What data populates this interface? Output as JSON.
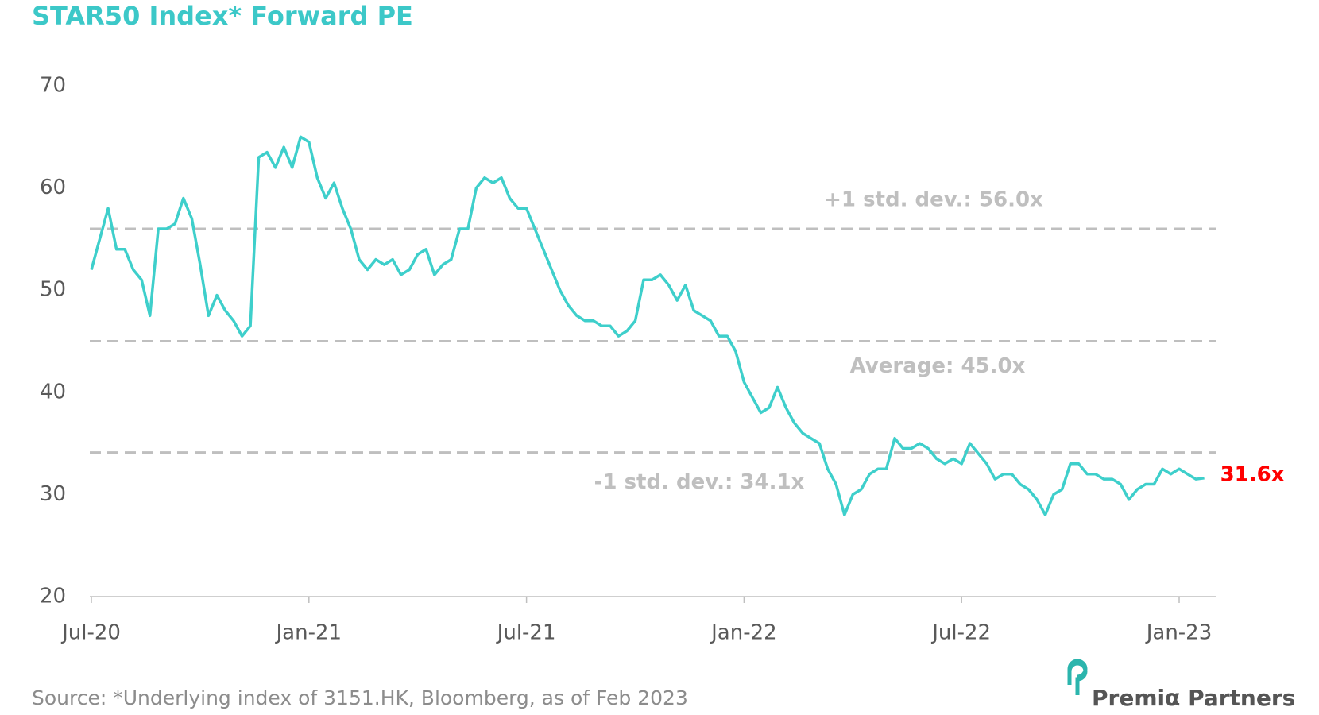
{
  "chart_data": {
    "type": "line",
    "title": "STAR50 Index* Forward PE",
    "source": "Source: *Underlying index of 3151.HK, Bloomberg, as of Feb 2023",
    "brand": "Premiα Partners",
    "categories": [
      "Jul-20",
      null,
      null,
      null,
      null,
      null,
      null,
      null,
      null,
      null,
      null,
      null,
      null,
      null,
      null,
      null,
      null,
      null,
      null,
      null,
      null,
      null,
      null,
      null,
      null,
      null,
      "Jan-21",
      null,
      null,
      null,
      null,
      null,
      null,
      null,
      null,
      null,
      null,
      null,
      null,
      null,
      null,
      null,
      null,
      null,
      null,
      null,
      null,
      null,
      null,
      null,
      null,
      null,
      "Jul-21",
      null,
      null,
      null,
      null,
      null,
      null,
      null,
      null,
      null,
      null,
      null,
      null,
      null,
      null,
      null,
      null,
      null,
      null,
      null,
      null,
      null,
      null,
      null,
      null,
      null,
      "Jan-22",
      null,
      null,
      null,
      null,
      null,
      null,
      null,
      null,
      null,
      null,
      null,
      null,
      null,
      null,
      null,
      null,
      null,
      null,
      null,
      null,
      null,
      null,
      null,
      null,
      null,
      "Jul-22",
      null,
      null,
      null,
      null,
      null,
      null,
      null,
      null,
      null,
      null,
      null,
      null,
      null,
      null,
      null,
      null,
      null,
      null,
      null,
      null,
      null,
      null,
      null,
      null,
      null,
      "Jan-23",
      null,
      null,
      null
    ],
    "series": [
      {
        "name": "STAR50 Index Forward PE",
        "color": "#3ecfcb",
        "values": [
          52,
          55,
          58,
          54,
          54,
          52,
          51,
          47.5,
          56,
          56,
          56.5,
          59,
          57,
          52.5,
          47.5,
          49.5,
          48,
          47,
          45.5,
          46.5,
          63,
          63.5,
          62,
          64,
          62,
          65,
          64.5,
          61,
          59,
          60.5,
          58,
          56,
          53,
          52,
          53,
          52.5,
          53,
          51.5,
          52,
          53.5,
          54,
          51.5,
          52.5,
          53,
          56,
          56,
          60,
          61,
          60.5,
          61,
          59,
          58,
          58,
          56,
          54,
          52,
          50,
          48.5,
          47.5,
          47,
          47,
          46.5,
          46.5,
          45.5,
          46,
          47,
          51,
          51,
          51.5,
          50.5,
          49,
          50.5,
          48,
          47.5,
          47,
          45.5,
          45.5,
          44,
          41,
          39.5,
          38,
          38.5,
          40.5,
          38.5,
          37,
          36,
          35.5,
          35,
          32.5,
          31,
          28,
          30,
          30.5,
          32,
          32.5,
          32.5,
          35.5,
          34.5,
          34.5,
          35,
          34.5,
          33.5,
          33,
          33.5,
          33,
          35,
          34,
          33,
          31.5,
          32,
          32,
          31,
          30.5,
          29.5,
          28,
          30,
          30.5,
          33,
          33,
          32,
          32,
          31.5,
          31.5,
          31,
          29.5,
          30.5,
          31,
          31,
          32.5,
          32,
          32.5,
          32,
          31.5,
          31.6
        ],
        "value_labels": [
          null,
          null,
          null,
          null,
          null,
          null,
          null,
          null,
          null,
          null,
          null,
          null,
          null,
          null,
          null,
          null,
          null,
          null,
          null,
          null,
          null,
          null,
          null,
          null,
          null,
          null,
          null,
          null,
          null,
          null,
          null,
          null,
          null,
          null,
          null,
          null,
          null,
          null,
          null,
          null,
          null,
          null,
          null,
          null,
          null,
          null,
          null,
          null,
          null,
          null,
          null,
          null,
          null,
          null,
          null,
          null,
          null,
          null,
          null,
          null,
          null,
          null,
          null,
          null,
          null,
          null,
          null,
          null,
          null,
          null,
          null,
          null,
          null,
          null,
          null,
          null,
          null,
          null,
          null,
          null,
          null,
          null,
          null,
          null,
          null,
          null,
          null,
          null,
          null,
          null,
          null,
          null,
          null,
          null,
          null,
          null,
          null,
          null,
          null,
          null,
          null,
          null,
          null,
          null,
          null,
          null,
          null,
          null,
          null,
          null,
          null,
          null,
          null,
          null,
          null,
          null,
          null,
          null,
          null,
          null,
          null,
          null,
          null,
          null,
          null,
          null,
          null,
          null,
          null,
          null,
          null,
          null,
          null,
          "31.6x"
        ],
        "value_label_color": "#ff0000"
      }
    ],
    "reference_lines": [
      {
        "value": 56.0,
        "label": "+1 std. dev.: 56.0x"
      },
      {
        "value": 45.0,
        "label": "Average: 45.0x"
      },
      {
        "value": 34.1,
        "label": "-1 std. dev.: 34.1x"
      }
    ],
    "reference_color": "#bfbfbf",
    "ylim": [
      20,
      70
    ],
    "yticks": [
      20,
      30,
      40,
      50,
      60,
      70
    ]
  }
}
